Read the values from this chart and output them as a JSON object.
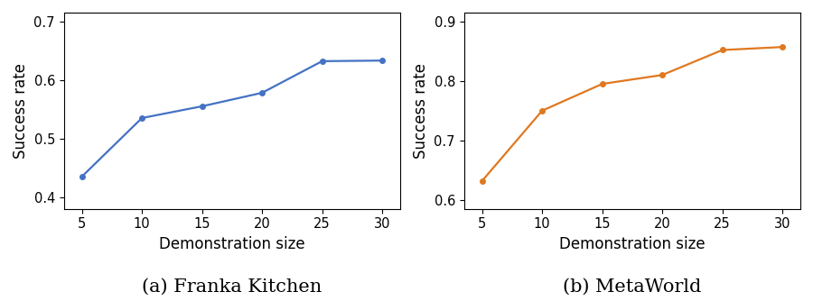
{
  "x": [
    5,
    10,
    15,
    20,
    25,
    30
  ],
  "franka_y": [
    0.435,
    0.535,
    0.555,
    0.578,
    0.632,
    0.633
  ],
  "metaworld_y": [
    0.632,
    0.75,
    0.795,
    0.81,
    0.852,
    0.857
  ],
  "franka_color": "#4472C4",
  "metaworld_color": "#E07820",
  "franka_xlabel": "Demonstration size",
  "metaworld_xlabel": "Demonstration size",
  "franka_ylabel": "Success rate",
  "metaworld_ylabel": "Success rate",
  "franka_caption": "(a) Franka Kitchen",
  "metaworld_caption": "(b) MetaWorld",
  "franka_ylim": [
    0.38,
    0.715
  ],
  "metaworld_ylim": [
    0.585,
    0.915
  ],
  "franka_yticks": [
    0.4,
    0.5,
    0.6,
    0.7
  ],
  "metaworld_yticks": [
    0.6,
    0.7,
    0.8,
    0.9
  ],
  "xticks": [
    5,
    10,
    15,
    20,
    25,
    30
  ],
  "xlim": [
    3.5,
    31.5
  ],
  "marker": "o",
  "markersize": 4,
  "linewidth": 1.6,
  "caption_fontsize": 15,
  "label_fontsize": 12,
  "tick_fontsize": 10.5,
  "bg_color": "#ffffff"
}
